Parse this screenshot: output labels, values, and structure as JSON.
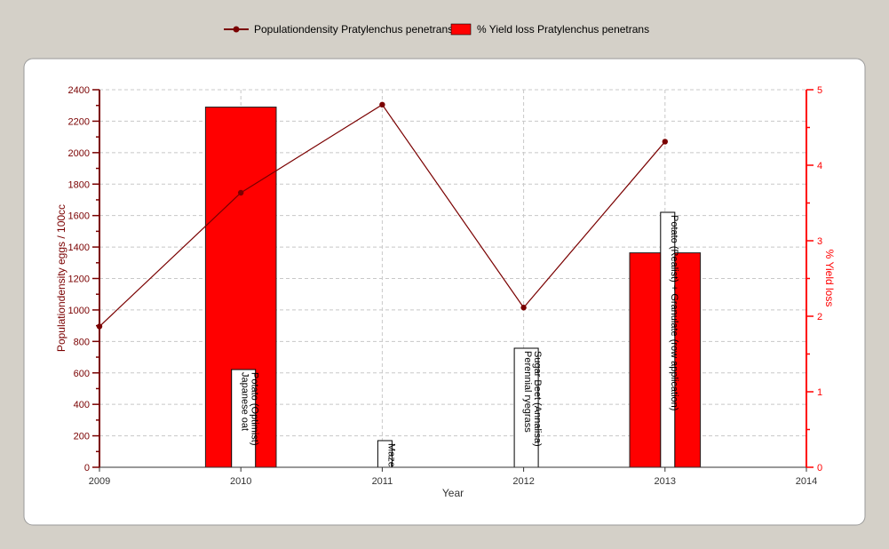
{
  "chart_data": {
    "type": "bar",
    "x": [
      2009,
      2010,
      2011,
      2012,
      2013
    ],
    "xlim": [
      2009,
      2014
    ],
    "xticks": [
      "2009",
      "2010",
      "2011",
      "2012",
      "2013",
      "2014"
    ],
    "xlabel": "Year",
    "y_left": {
      "label": "Populationdensity eggs / 100cc",
      "lim": [
        0,
        2400
      ],
      "ticks": [
        "0",
        "200",
        "400",
        "600",
        "800",
        "1000",
        "1200",
        "1400",
        "1600",
        "1800",
        "2000",
        "2200",
        "2400"
      ]
    },
    "y_right": {
      "label": "% Yield loss",
      "lim": [
        0,
        5
      ],
      "ticks": [
        "0",
        "1",
        "2",
        "3",
        "4",
        "5"
      ]
    },
    "series": [
      {
        "name": "Populationdensity Pratylenchus penetrans",
        "kind": "line",
        "axis": "left",
        "color": "#7a0000",
        "x": [
          2009,
          2010,
          2011,
          2012,
          2013
        ],
        "values": [
          895,
          1745,
          2305,
          1015,
          2070
        ]
      },
      {
        "name": "% Yield loss Pratylenchus penetrans",
        "kind": "bar",
        "axis": "right",
        "color": "#ff0000",
        "x": [
          2010,
          2013
        ],
        "values": [
          4.77,
          2.84
        ]
      }
    ],
    "annotations": [
      {
        "x": 2010,
        "lines": [
          "Potato (Optimist)",
          "Japanese oat"
        ]
      },
      {
        "x": 2011,
        "lines": [
          "Maze"
        ]
      },
      {
        "x": 2012,
        "lines": [
          "Sugar Beet (Annalisa)",
          "Perennial ryegrass"
        ]
      },
      {
        "x": 2013,
        "lines": [
          "Potato (Realist) + Granulate (row application)"
        ]
      }
    ],
    "grid": true,
    "legend_position": "top-center"
  }
}
